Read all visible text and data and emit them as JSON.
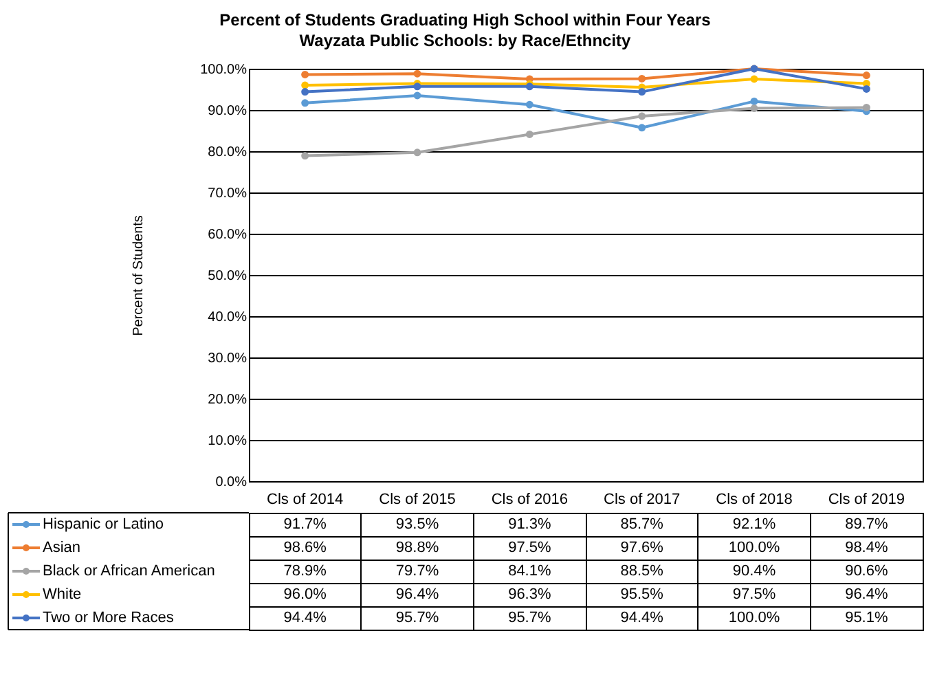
{
  "chart_data": {
    "type": "line",
    "title": "Percent of Students Graduating High School within Four Years",
    "subtitle": "Wayzata Public Schools: by Race/Ethncity",
    "ylabel": "Percent of Students",
    "categories": [
      "Cls of 2014",
      "Cls of 2015",
      "Cls of 2016",
      "Cls of 2017",
      "Cls of 2018",
      "Cls of 2019"
    ],
    "series": [
      {
        "name": "Hispanic or Latino",
        "color": "#5b9bd5",
        "values": [
          91.7,
          93.5,
          91.3,
          85.7,
          92.1,
          89.7
        ],
        "value_labels": [
          "91.7%",
          "93.5%",
          "91.3%",
          "85.7%",
          "92.1%",
          "89.7%"
        ]
      },
      {
        "name": "Asian",
        "color": "#ed7d31",
        "values": [
          98.6,
          98.8,
          97.5,
          97.6,
          100.0,
          98.4
        ],
        "value_labels": [
          "98.6%",
          "98.8%",
          "97.5%",
          "97.6%",
          "100.0%",
          "98.4%"
        ]
      },
      {
        "name": "Black or African American",
        "color": "#a5a5a5",
        "values": [
          78.9,
          79.7,
          84.1,
          88.5,
          90.4,
          90.6
        ],
        "value_labels": [
          "78.9%",
          "79.7%",
          "84.1%",
          "88.5%",
          "90.4%",
          "90.6%"
        ]
      },
      {
        "name": "White",
        "color": "#ffc000",
        "values": [
          96.0,
          96.4,
          96.3,
          95.5,
          97.5,
          96.4
        ],
        "value_labels": [
          "96.0%",
          "96.4%",
          "96.3%",
          "95.5%",
          "97.5%",
          "96.4%"
        ]
      },
      {
        "name": "Two or More Races",
        "color": "#4472c4",
        "values": [
          94.4,
          95.7,
          95.7,
          94.4,
          100.0,
          95.1
        ],
        "value_labels": [
          "94.4%",
          "95.7%",
          "95.7%",
          "94.4%",
          "100.0%",
          "95.1%"
        ]
      }
    ],
    "ylim": [
      0,
      100
    ],
    "yticks": [
      {
        "value": 0,
        "label": "0.0%"
      },
      {
        "value": 10,
        "label": "10.0%"
      },
      {
        "value": 20,
        "label": "20.0%"
      },
      {
        "value": 30,
        "label": "30.0%"
      },
      {
        "value": 40,
        "label": "40.0%"
      },
      {
        "value": 50,
        "label": "50.0%"
      },
      {
        "value": 60,
        "label": "60.0%"
      },
      {
        "value": 70,
        "label": "70.0%"
      },
      {
        "value": 80,
        "label": "80.0%"
      },
      {
        "value": 90,
        "label": "90.0%"
      },
      {
        "value": 100,
        "label": "100.0%"
      }
    ],
    "grid": "y",
    "legend": "bottom",
    "marker": "circle",
    "line_style": "solid"
  }
}
